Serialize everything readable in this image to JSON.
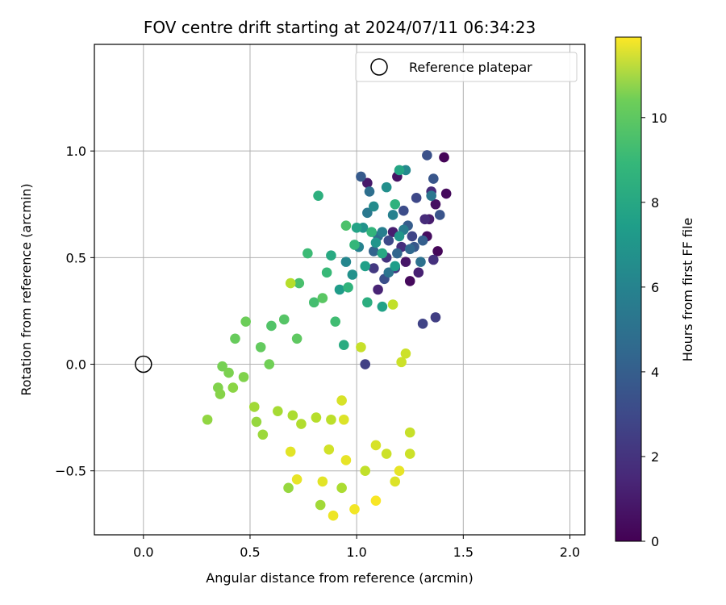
{
  "chart_data": {
    "type": "scatter",
    "title": "FOV centre drift starting at 2024/07/11 06:34:23",
    "xlabel": "Angular distance from reference (arcmin)",
    "ylabel": "Rotation from reference (arcmin)",
    "xlim": [
      -0.23,
      2.07
    ],
    "ylim": [
      -0.8,
      1.5
    ],
    "xticks": [
      0.0,
      0.5,
      1.0,
      1.5,
      2.0
    ],
    "xtick_labels": [
      "0.0",
      "0.5",
      "1.0",
      "1.5",
      "2.0"
    ],
    "yticks": [
      -0.5,
      0.0,
      0.5,
      1.0
    ],
    "ytick_labels": [
      "−0.5",
      "0.0",
      "0.5",
      "1.0"
    ],
    "grid": true,
    "legend": {
      "position": "top-right",
      "entries": [
        "Reference platepar"
      ]
    },
    "reference_point": {
      "x": 0.0,
      "y": 0.0
    },
    "colorbar": {
      "label": "Hours from first FF file",
      "min": 0,
      "max": 11.9,
      "ticks": [
        0,
        2,
        4,
        6,
        8,
        10
      ],
      "tick_labels": [
        "0",
        "2",
        "4",
        "6",
        "8",
        "10"
      ],
      "colormap": "viridis"
    },
    "series": [
      {
        "marker": "filled-circle",
        "points": [
          [
            1.41,
            0.97,
            0.1
          ],
          [
            1.42,
            0.8,
            0.3
          ],
          [
            1.37,
            0.75,
            0.5
          ],
          [
            1.33,
            0.6,
            0.4
          ],
          [
            1.38,
            0.53,
            0.2
          ],
          [
            1.25,
            0.39,
            0.3
          ],
          [
            1.19,
            0.88,
            0.6
          ],
          [
            1.05,
            0.85,
            0.8
          ],
          [
            1.34,
            0.68,
            0.9
          ],
          [
            1.23,
            0.48,
            0.7
          ],
          [
            1.17,
            0.62,
            1.0
          ],
          [
            1.1,
            0.35,
            1.2
          ],
          [
            1.29,
            0.43,
            1.1
          ],
          [
            1.35,
            0.81,
            1.4
          ],
          [
            1.32,
            0.68,
            1.5
          ],
          [
            1.21,
            0.55,
            1.6
          ],
          [
            1.14,
            0.5,
            1.8
          ],
          [
            1.08,
            0.45,
            2.0
          ],
          [
            1.36,
            0.49,
            1.7
          ],
          [
            1.18,
            0.45,
            1.9
          ],
          [
            1.37,
            0.22,
            2.2
          ],
          [
            1.31,
            0.19,
            2.4
          ],
          [
            1.04,
            0.0,
            2.3
          ],
          [
            1.28,
            0.78,
            2.6
          ],
          [
            1.26,
            0.6,
            2.5
          ],
          [
            1.22,
            0.72,
            2.8
          ],
          [
            1.15,
            0.58,
            2.7
          ],
          [
            1.33,
            0.98,
            3.0
          ],
          [
            1.36,
            0.87,
            3.2
          ],
          [
            1.39,
            0.7,
            3.1
          ],
          [
            1.13,
            0.4,
            2.9
          ],
          [
            1.02,
            0.88,
            3.4
          ],
          [
            1.27,
            0.55,
            3.3
          ],
          [
            1.24,
            0.65,
            3.5
          ],
          [
            1.31,
            0.58,
            3.6
          ],
          [
            1.08,
            0.53,
            3.8
          ],
          [
            1.19,
            0.52,
            3.9
          ],
          [
            1.25,
            0.54,
            4.0
          ],
          [
            1.1,
            0.6,
            4.2
          ],
          [
            1.06,
            0.81,
            4.3
          ],
          [
            1.3,
            0.48,
            4.4
          ],
          [
            1.15,
            0.43,
            4.6
          ],
          [
            1.35,
            0.79,
            4.7
          ],
          [
            1.05,
            0.71,
            4.8
          ],
          [
            1.22,
            0.63,
            5.0
          ],
          [
            1.12,
            0.62,
            5.1
          ],
          [
            1.17,
            0.7,
            5.2
          ],
          [
            1.01,
            0.55,
            5.3
          ],
          [
            0.95,
            0.48,
            5.5
          ],
          [
            1.23,
            0.91,
            5.6
          ],
          [
            1.08,
            0.74,
            5.7
          ],
          [
            1.14,
            0.83,
            5.9
          ],
          [
            0.98,
            0.42,
            6.0
          ],
          [
            1.03,
            0.64,
            6.1
          ],
          [
            1.09,
            0.57,
            6.2
          ],
          [
            1.2,
            0.6,
            6.3
          ],
          [
            0.92,
            0.35,
            6.5
          ],
          [
            1.18,
            0.46,
            6.6
          ],
          [
            1.04,
            0.46,
            6.7
          ],
          [
            1.12,
            0.27,
            6.8
          ],
          [
            1.2,
            0.91,
            7.0
          ],
          [
            1.12,
            0.52,
            7.1
          ],
          [
            0.88,
            0.51,
            7.2
          ],
          [
            0.94,
            0.09,
            7.3
          ],
          [
            1.05,
            0.29,
            7.4
          ],
          [
            1.0,
            0.64,
            6.9
          ],
          [
            0.82,
            0.79,
            7.5
          ],
          [
            1.18,
            0.75,
            7.6
          ],
          [
            0.96,
            0.36,
            7.7
          ],
          [
            1.07,
            0.62,
            7.8
          ],
          [
            0.99,
            0.56,
            7.9
          ],
          [
            0.77,
            0.52,
            8.1
          ],
          [
            0.86,
            0.43,
            8.0
          ],
          [
            0.9,
            0.2,
            8.2
          ],
          [
            0.8,
            0.29,
            8.3
          ],
          [
            0.73,
            0.38,
            8.4
          ],
          [
            0.95,
            0.65,
            8.5
          ],
          [
            0.6,
            0.18,
            8.6
          ],
          [
            0.66,
            0.21,
            8.7
          ],
          [
            0.84,
            0.31,
            8.8
          ],
          [
            0.72,
            0.12,
            8.9
          ],
          [
            0.55,
            0.08,
            9.0
          ],
          [
            0.43,
            0.12,
            9.1
          ],
          [
            0.48,
            0.2,
            9.2
          ],
          [
            0.59,
            0.0,
            9.3
          ],
          [
            0.37,
            -0.01,
            9.4
          ],
          [
            0.4,
            -0.04,
            9.5
          ],
          [
            0.47,
            -0.06,
            9.6
          ],
          [
            0.35,
            -0.11,
            9.6
          ],
          [
            0.36,
            -0.14,
            9.7
          ],
          [
            0.42,
            -0.11,
            9.8
          ],
          [
            0.3,
            -0.26,
            9.9
          ],
          [
            0.53,
            -0.27,
            10.0
          ],
          [
            0.56,
            -0.33,
            10.1
          ],
          [
            0.52,
            -0.2,
            10.2
          ],
          [
            0.63,
            -0.22,
            10.3
          ],
          [
            0.7,
            -0.24,
            10.4
          ],
          [
            0.74,
            -0.28,
            10.5
          ],
          [
            0.69,
            0.38,
            10.6
          ],
          [
            0.81,
            -0.25,
            10.6
          ],
          [
            0.88,
            -0.26,
            10.7
          ],
          [
            1.17,
            0.28,
            10.8
          ],
          [
            1.02,
            0.08,
            10.9
          ],
          [
            1.23,
            0.05,
            11.0
          ],
          [
            1.21,
            0.01,
            11.0
          ],
          [
            0.93,
            -0.17,
            11.2
          ],
          [
            0.94,
            -0.26,
            11.3
          ],
          [
            0.87,
            -0.4,
            11.1
          ],
          [
            0.69,
            -0.41,
            11.4
          ],
          [
            0.72,
            -0.54,
            11.5
          ],
          [
            0.89,
            -0.71,
            11.6
          ],
          [
            0.99,
            -0.68,
            11.7
          ],
          [
            1.09,
            -0.64,
            11.8
          ],
          [
            1.2,
            -0.5,
            11.5
          ],
          [
            1.18,
            -0.55,
            11.3
          ],
          [
            1.25,
            -0.42,
            11.0
          ],
          [
            1.25,
            -0.32,
            10.9
          ],
          [
            1.09,
            -0.38,
            11.2
          ],
          [
            0.95,
            -0.45,
            11.5
          ],
          [
            0.84,
            -0.55,
            11.4
          ],
          [
            0.83,
            -0.66,
            10.2
          ],
          [
            0.68,
            -0.58,
            10.0
          ],
          [
            0.93,
            -0.58,
            10.4
          ],
          [
            1.04,
            -0.5,
            10.8
          ],
          [
            1.14,
            -0.42,
            11.0
          ]
        ]
      }
    ]
  }
}
